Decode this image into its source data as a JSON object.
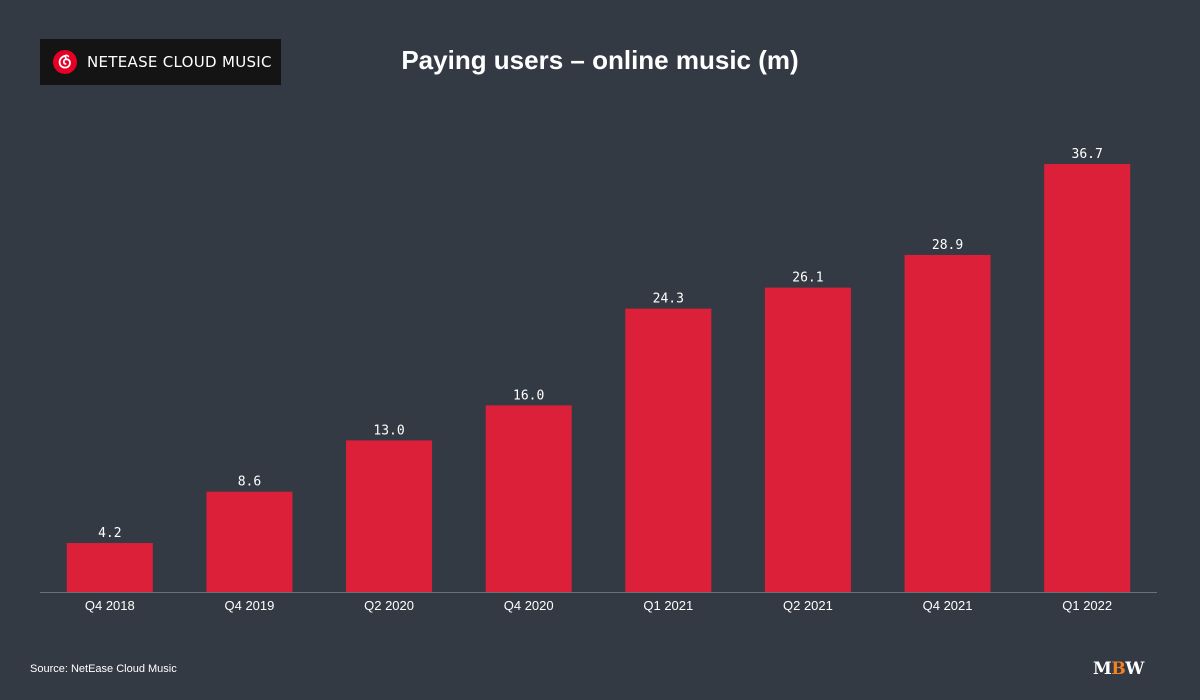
{
  "brand": {
    "name": "NETEASE CLOUD MUSIC",
    "logo_icon": "netease-cloud-music-logo-icon",
    "logo_color": "#e60026"
  },
  "footer": {
    "source": "Source: NetEase Cloud Music",
    "publisher_mark": "MBW",
    "publisher_parts": {
      "m": "M",
      "b": "B",
      "w": "W"
    },
    "publisher_accent": "#f58220"
  },
  "colors": {
    "background": "#343a43",
    "bar": "#dc203a",
    "text": "#ffffff",
    "axis": "#6b7079"
  },
  "chart_data": {
    "type": "bar",
    "title": "Paying users – online music (m)",
    "categories": [
      "Q4 2018",
      "Q4 2019",
      "Q2 2020",
      "Q4 2020",
      "Q1 2021",
      "Q2 2021",
      "Q4 2021",
      "Q1 2022"
    ],
    "values": [
      4.2,
      8.6,
      13.0,
      16.0,
      24.3,
      26.1,
      28.9,
      36.7
    ],
    "value_labels": [
      "4.2",
      "8.6",
      "13.0",
      "16.0",
      "24.3",
      "26.1",
      "28.9",
      "36.7"
    ],
    "xlabel": "",
    "ylabel": "",
    "ylim": [
      0,
      36.7
    ],
    "grid": false,
    "legend": "none"
  }
}
